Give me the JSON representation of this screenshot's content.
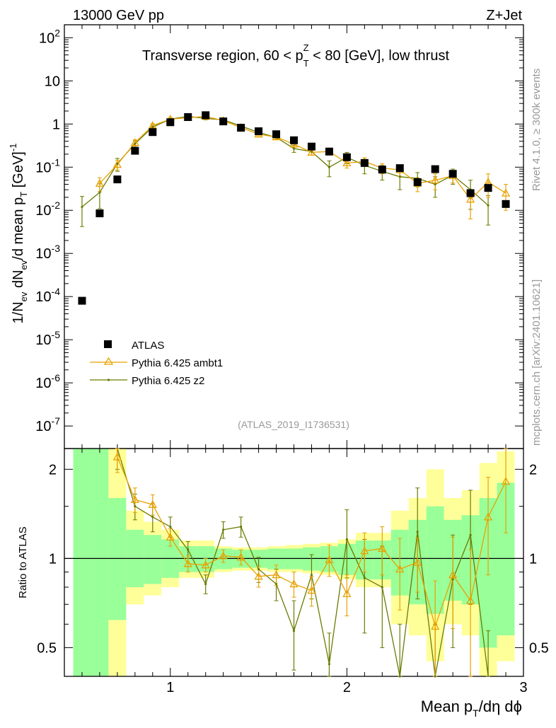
{
  "header": {
    "energy_label": "13000 GeV pp",
    "process_label": "Z+Jet"
  },
  "side_labels": {
    "rivet": "Rivet 4.1.0, ≥ 300k events",
    "mcplots": "mcplots.cern.ch [arXiv:2401.10621]"
  },
  "colors": {
    "atlas": "#000000",
    "ambt1": "#e8a100",
    "z2": "#6b7a00",
    "band_inner": "#99ff99",
    "band_outer": "#ffff99"
  },
  "chart_data": [
    {
      "type": "line",
      "panel": "main",
      "title": "Transverse region, 60 < p_T^Z < 80 [GeV], low thrust",
      "title_parts": {
        "pre": "Transverse region, 60 < p",
        "sub": "T",
        "sup": "Z",
        "post": " < 80 [GeV], low thrust"
      },
      "ylabel": "1/N_ev dN_ev/d mean p_T [GeV]^-1",
      "ylabel_parts": {
        "a": "1/N",
        "b": "ev",
        "c": " dN",
        "d": "ev",
        "e": "/d mean p",
        "f": "T",
        "g": " [GeV]",
        "h": "-1"
      },
      "yscale": "log",
      "ylim": [
        3e-08,
        200
      ],
      "xlim": [
        0.4,
        3.0
      ],
      "ytick_labels": [
        {
          "base": "10",
          "exp": "2",
          "value": 100
        },
        {
          "base": "10",
          "exp": "",
          "value": 10
        },
        {
          "base": "1",
          "exp": "",
          "value": 1
        },
        {
          "base": "10",
          "exp": "-1",
          "value": 0.1
        },
        {
          "base": "10",
          "exp": "-2",
          "value": 0.01
        },
        {
          "base": "10",
          "exp": "-3",
          "value": 0.001
        },
        {
          "base": "10",
          "exp": "-4",
          "value": 0.0001
        },
        {
          "base": "10",
          "exp": "-5",
          "value": 1e-05
        },
        {
          "base": "10",
          "exp": "-6",
          "value": 1e-06
        },
        {
          "base": "10",
          "exp": "-7",
          "value": 1e-07
        }
      ],
      "watermark": "(ATLAS_2019_I1736531)",
      "legend_position": "bottom-left",
      "series": [
        {
          "name": "ATLAS",
          "marker": "square",
          "x": [
            0.5,
            0.6,
            0.7,
            0.8,
            0.9,
            1.0,
            1.1,
            1.2,
            1.3,
            1.4,
            1.5,
            1.6,
            1.7,
            1.8,
            1.9,
            2.0,
            2.1,
            2.2,
            2.3,
            2.4,
            2.5,
            2.6,
            2.7,
            2.8,
            2.9
          ],
          "y": [
            8e-05,
            0.0085,
            0.052,
            0.24,
            0.65,
            1.1,
            1.45,
            1.6,
            1.15,
            0.82,
            0.68,
            0.58,
            0.42,
            0.3,
            0.23,
            0.17,
            0.125,
            0.088,
            0.095,
            0.045,
            0.09,
            0.07,
            0.025,
            0.033,
            0.014
          ]
        },
        {
          "name": "Pythia 6.425 ambt1",
          "marker": "triangle",
          "x": [
            0.6,
            0.7,
            0.8,
            0.9,
            1.0,
            1.1,
            1.2,
            1.3,
            1.4,
            1.5,
            1.6,
            1.7,
            1.8,
            1.9,
            2.0,
            2.1,
            2.2,
            2.3,
            2.4,
            2.5,
            2.6,
            2.7,
            2.8,
            2.9
          ],
          "y": [
            0.042,
            0.115,
            0.37,
            0.92,
            1.3,
            1.4,
            1.5,
            1.2,
            0.83,
            0.58,
            0.5,
            0.34,
            0.22,
            0.23,
            0.125,
            0.135,
            0.095,
            0.087,
            0.042,
            0.05,
            0.063,
            0.018,
            0.045,
            0.025
          ],
          "err": [
            0.015,
            0.03,
            0.06,
            0.1,
            0.1,
            0.1,
            0.1,
            0.08,
            0.07,
            0.05,
            0.05,
            0.04,
            0.03,
            0.04,
            0.03,
            0.03,
            0.025,
            0.025,
            0.015,
            0.02,
            0.02,
            0.012,
            0.025,
            0.015
          ]
        },
        {
          "name": "Pythia 6.425 z2",
          "marker": "dot",
          "x": [
            0.5,
            0.6,
            0.7,
            0.8,
            0.9,
            1.0,
            1.1,
            1.2,
            1.3,
            1.4,
            1.5,
            1.6,
            1.7,
            1.8,
            1.9,
            2.0,
            2.1,
            2.2,
            2.3,
            2.4,
            2.5,
            2.6,
            2.7,
            2.8
          ],
          "y": [
            0.012,
            0.026,
            0.12,
            0.35,
            0.85,
            1.3,
            1.5,
            1.35,
            1.25,
            0.9,
            0.64,
            0.49,
            0.27,
            0.23,
            0.1,
            0.17,
            0.11,
            0.08,
            0.06,
            0.055,
            0.04,
            0.065,
            0.03,
            0.013
          ],
          "err": [
            0.009,
            0.015,
            0.04,
            0.06,
            0.09,
            0.1,
            0.1,
            0.1,
            0.1,
            0.08,
            0.06,
            0.05,
            0.05,
            0.04,
            0.04,
            0.05,
            0.04,
            0.03,
            0.03,
            0.02,
            0.02,
            0.025,
            0.02,
            0.009
          ]
        }
      ]
    },
    {
      "type": "line",
      "panel": "ratio",
      "ylabel": "Ratio to ATLAS",
      "xlabel": "Mean p_T/dη dϕ",
      "xlabel_parts": {
        "a": "Mean p",
        "b": "T",
        "c": "/dη dϕ"
      },
      "yscale": "log",
      "ylim": [
        0.4,
        2.35
      ],
      "xlim": [
        0.4,
        3.0
      ],
      "reference": 1,
      "xtick_labels": [
        {
          "label": "1",
          "value": 1
        },
        {
          "label": "2",
          "value": 2
        },
        {
          "label": "3",
          "value": 3
        }
      ],
      "ytick_labels": [
        {
          "label": "2",
          "value": 2
        },
        {
          "label": "1",
          "value": 1
        },
        {
          "label": "0.5",
          "value": 0.5
        }
      ],
      "bands": {
        "edges": [
          0.45,
          0.55,
          0.65,
          0.75,
          0.85,
          0.95,
          1.05,
          1.15,
          1.25,
          1.35,
          1.45,
          1.55,
          1.65,
          1.75,
          1.85,
          1.95,
          2.05,
          2.15,
          2.25,
          2.35,
          2.45,
          2.55,
          2.65,
          2.75,
          2.85,
          2.95
        ],
        "inner_lo": [
          0.1,
          0.1,
          0.62,
          0.8,
          0.82,
          0.86,
          0.9,
          0.9,
          0.92,
          0.93,
          0.93,
          0.92,
          0.92,
          0.91,
          0.9,
          0.88,
          0.85,
          0.85,
          0.75,
          0.7,
          0.65,
          0.72,
          0.7,
          0.5,
          0.55
        ],
        "inner_hi": [
          10,
          10,
          1.6,
          1.25,
          1.2,
          1.16,
          1.1,
          1.1,
          1.08,
          1.07,
          1.07,
          1.08,
          1.08,
          1.09,
          1.1,
          1.12,
          1.15,
          1.15,
          1.25,
          1.35,
          1.5,
          1.35,
          1.4,
          1.6,
          1.8
        ],
        "outer_lo": [
          0.1,
          0.1,
          0.1,
          0.7,
          0.75,
          0.8,
          0.86,
          0.86,
          0.9,
          0.91,
          0.91,
          0.9,
          0.9,
          0.89,
          0.88,
          0.85,
          0.8,
          0.8,
          0.6,
          0.55,
          0.45,
          0.6,
          0.55,
          0.35,
          0.45
        ],
        "outer_hi": [
          10,
          10,
          10,
          1.45,
          1.33,
          1.25,
          1.15,
          1.15,
          1.1,
          1.09,
          1.09,
          1.1,
          1.11,
          1.12,
          1.13,
          1.16,
          1.22,
          1.22,
          1.45,
          1.6,
          2.0,
          1.6,
          1.7,
          2.1,
          2.3
        ]
      },
      "series": [
        {
          "name": "Pythia 6.425 ambt1",
          "x": [
            0.7,
            0.8,
            0.9,
            1.0,
            1.1,
            1.2,
            1.3,
            1.4,
            1.5,
            1.6,
            1.7,
            1.8,
            1.9,
            2.0,
            2.1,
            2.2,
            2.3,
            2.4,
            2.5,
            2.6,
            2.7,
            2.8,
            2.9
          ],
          "y": [
            2.2,
            1.58,
            1.52,
            1.18,
            0.96,
            0.95,
            1.02,
            1.01,
            0.87,
            0.88,
            0.82,
            0.78,
            0.99,
            0.76,
            1.06,
            1.08,
            0.92,
            0.97,
            0.59,
            0.88,
            0.72,
            1.38,
            1.82
          ],
          "err": [
            0.25,
            0.15,
            0.12,
            0.08,
            0.06,
            0.05,
            0.05,
            0.06,
            0.07,
            0.07,
            0.08,
            0.09,
            0.12,
            0.12,
            0.16,
            0.2,
            0.25,
            0.2,
            0.25,
            0.3,
            0.35,
            0.5,
            0.6
          ]
        },
        {
          "name": "Pythia 6.425 z2",
          "x": [
            0.7,
            0.8,
            0.9,
            1.0,
            1.1,
            1.2,
            1.3,
            1.4,
            1.5,
            1.6,
            1.7,
            1.8,
            1.9,
            2.0,
            2.1,
            2.2,
            2.3,
            2.4,
            2.5,
            2.6,
            2.7,
            2.8
          ],
          "y": [
            2.4,
            1.5,
            1.38,
            1.28,
            1.07,
            0.82,
            1.25,
            1.28,
            0.92,
            0.82,
            0.57,
            0.88,
            0.44,
            1.16,
            0.86,
            0.8,
            0.4,
            1.23,
            0.4,
            0.85,
            1.2,
            0.32
          ],
          "err": [
            0.4,
            0.15,
            0.15,
            0.1,
            0.07,
            0.06,
            0.08,
            0.1,
            0.09,
            0.1,
            0.15,
            0.15,
            0.12,
            0.3,
            0.3,
            0.3,
            0.2,
            0.5,
            0.2,
            0.35,
            0.5,
            0.25
          ]
        }
      ]
    }
  ],
  "legend": [
    {
      "label": "ATLAS",
      "color": "#000000"
    },
    {
      "label": "Pythia 6.425 ambt1",
      "color": "#e8a100"
    },
    {
      "label": "Pythia 6.425 z2",
      "color": "#6b7a00"
    }
  ]
}
